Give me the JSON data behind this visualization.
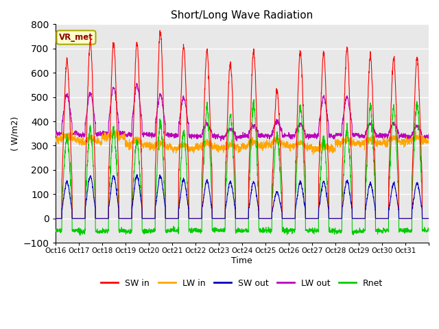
{
  "title": "Short/Long Wave Radiation",
  "ylabel": "( W/m2)",
  "xlabel": "Time",
  "annotation": "VR_met",
  "ylim": [
    -100,
    800
  ],
  "plot_bg_color": "#e8e8e8",
  "grid_color": "white",
  "colors": {
    "SW_in": "#ff0000",
    "LW_in": "#ffa500",
    "SW_out": "#0000bb",
    "LW_out": "#bb00bb",
    "Rnet": "#00cc00"
  },
  "legend_labels": [
    "SW in",
    "LW in",
    "SW out",
    "LW out",
    "Rnet"
  ],
  "x_tick_labels": [
    "Oct 16",
    "Oct 17",
    "Oct 18",
    "Oct 19",
    "Oct 20",
    "Oct 21",
    "Oct 22",
    "Oct 23",
    "Oct 24",
    "Oct 25",
    "Oct 26",
    "Oct 27",
    "Oct 28",
    "Oct 29",
    "Oct 30",
    "Oct 31"
  ],
  "n_days": 16,
  "pts_per_day": 144,
  "day_start": 0.28,
  "day_end": 0.72,
  "day_peaks_SW_in": [
    655,
    730,
    725,
    720,
    770,
    710,
    690,
    640,
    690,
    530,
    690,
    680,
    700,
    670,
    660,
    660
  ],
  "day_peaks_LW_out": [
    510,
    520,
    540,
    550,
    510,
    500,
    390,
    370,
    380,
    400,
    390,
    500,
    500,
    390,
    390,
    380
  ],
  "lw_in_base": [
    325,
    315,
    335,
    305,
    295,
    285,
    295,
    290,
    300,
    305,
    295,
    285,
    310,
    310,
    315,
    320
  ],
  "lw_out_base": [
    350,
    345,
    350,
    345,
    345,
    340,
    340,
    335,
    340,
    340,
    340,
    340,
    345,
    340,
    340,
    335
  ],
  "sw_out_peaks": [
    150,
    175,
    175,
    175,
    175,
    160,
    155,
    150,
    150,
    110,
    150,
    150,
    155,
    145,
    145,
    145
  ],
  "rnet_night": [
    -50,
    -55,
    -50,
    -55,
    -50,
    -50,
    -50,
    -50,
    -50,
    -50,
    -50,
    -50,
    -55,
    -50,
    -50,
    -50
  ]
}
